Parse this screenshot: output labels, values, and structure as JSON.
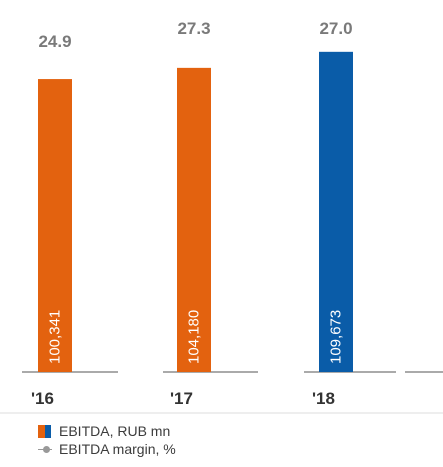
{
  "chart_data": {
    "type": "bar",
    "categories": [
      "'16",
      "'17",
      "'18"
    ],
    "series": [
      {
        "name": "EBITDA, RUB mn",
        "values": [
          100341,
          104180,
          109673
        ],
        "value_labels": [
          "100,341",
          "104,180",
          "109,673"
        ],
        "colors": [
          "#E3620F",
          "#E3620F",
          "#0A5CA8"
        ]
      },
      {
        "name": "EBITDA margin, %",
        "values": [
          24.9,
          27.3,
          27.0
        ],
        "value_labels": [
          "24.9",
          "27.3",
          "27.0"
        ]
      }
    ],
    "title": "",
    "xlabel": "",
    "ylabel": "",
    "ylim": [
      0,
      124000
    ],
    "grid": false,
    "legend": "bottom-left"
  },
  "legend": {
    "bar_label": "EBITDA, RUB mn",
    "line_label": "EBITDA margin, %",
    "bar_colors": [
      "#E3620F",
      "#0A5CA8"
    ],
    "line_color": "#999999"
  },
  "colors": {
    "primary": "#E3620F",
    "highlight": "#0A5CA8",
    "margin_text": "#7A7A7A",
    "axis": "#555555",
    "category_text": "#333333"
  }
}
